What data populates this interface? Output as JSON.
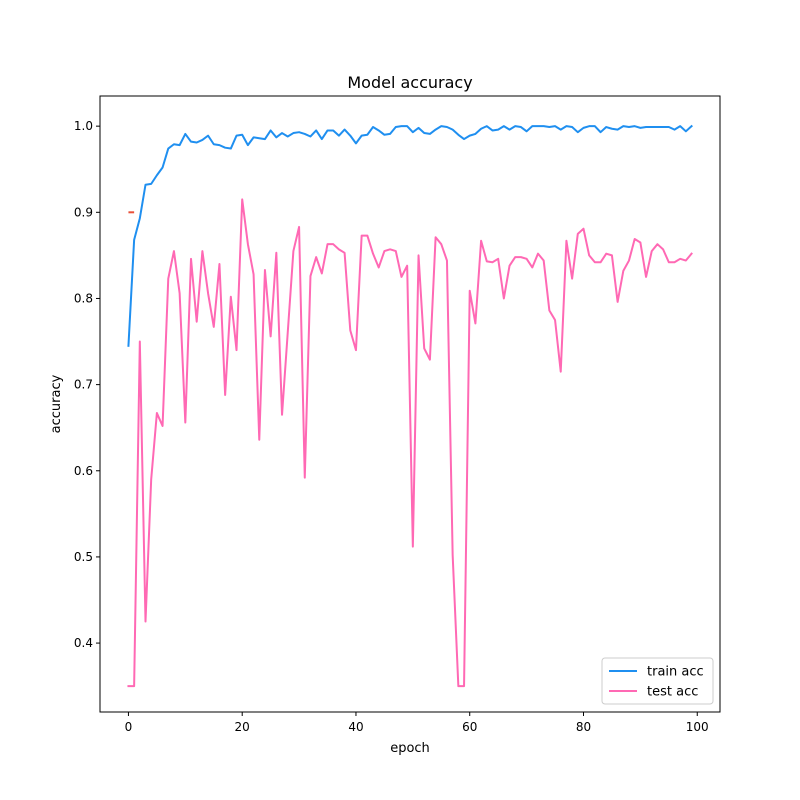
{
  "chart_data": {
    "type": "line",
    "title": "Model accuracy",
    "xlabel": "epoch",
    "ylabel": "accuracy",
    "xlim": [
      -5,
      104
    ],
    "ylim": [
      0.32,
      1.035
    ],
    "x_ticks": [
      0,
      20,
      40,
      60,
      80,
      100
    ],
    "y_ticks": [
      0.4,
      0.5,
      0.6,
      0.7,
      0.8,
      0.9,
      1.0
    ],
    "x_tick_labels": [
      "0",
      "20",
      "40",
      "60",
      "80",
      "100"
    ],
    "y_tick_labels": [
      "0.4",
      "0.5",
      "0.6",
      "0.7",
      "0.8",
      "0.9",
      "1.0"
    ],
    "grid": false,
    "legend_position": "bottom-right",
    "series": [
      {
        "name": "train acc",
        "color": "#1f8ff0",
        "x": [
          0,
          1,
          2,
          3,
          4,
          5,
          6,
          7,
          8,
          9,
          10,
          11,
          12,
          13,
          14,
          15,
          16,
          17,
          18,
          19,
          20,
          21,
          22,
          23,
          24,
          25,
          26,
          27,
          28,
          29,
          30,
          31,
          32,
          33,
          34,
          35,
          36,
          37,
          38,
          39,
          40,
          41,
          42,
          43,
          44,
          45,
          46,
          47,
          48,
          49,
          50,
          51,
          52,
          53,
          54,
          55,
          56,
          57,
          58,
          59,
          60,
          61,
          62,
          63,
          64,
          65,
          66,
          67,
          68,
          69,
          70,
          71,
          72,
          73,
          74,
          75,
          76,
          77,
          78,
          79,
          80,
          81,
          82,
          83,
          84,
          85,
          86,
          87,
          88,
          89,
          90,
          91,
          92,
          93,
          94,
          95,
          96,
          97,
          98,
          99
        ],
        "values": [
          0.745,
          0.868,
          0.893,
          0.932,
          0.933,
          0.943,
          0.952,
          0.974,
          0.979,
          0.978,
          0.991,
          0.982,
          0.981,
          0.984,
          0.989,
          0.979,
          0.978,
          0.975,
          0.974,
          0.989,
          0.99,
          0.978,
          0.987,
          0.986,
          0.985,
          0.995,
          0.987,
          0.992,
          0.988,
          0.992,
          0.993,
          0.991,
          0.988,
          0.995,
          0.985,
          0.995,
          0.995,
          0.989,
          0.996,
          0.989,
          0.98,
          0.989,
          0.99,
          0.999,
          0.995,
          0.99,
          0.991,
          0.999,
          1.0,
          1.0,
          0.993,
          0.998,
          0.992,
          0.991,
          0.996,
          1.0,
          0.999,
          0.996,
          0.99,
          0.985,
          0.989,
          0.991,
          0.997,
          1.0,
          0.995,
          0.996,
          1.0,
          0.996,
          1.0,
          0.999,
          0.994,
          1.0,
          1.0,
          1.0,
          0.999,
          1.0,
          0.996,
          1.0,
          0.999,
          0.993,
          0.998,
          1.0,
          1.0,
          0.993,
          0.999,
          0.997,
          0.996,
          1.0,
          0.999,
          1.0,
          0.998,
          0.999,
          0.999,
          0.999,
          0.999,
          0.999,
          0.996,
          1.0,
          0.994,
          1.0
        ]
      },
      {
        "name": "test acc",
        "color": "#ff69b4",
        "x": [
          0,
          1,
          2,
          3,
          4,
          5,
          6,
          7,
          8,
          9,
          10,
          11,
          12,
          13,
          14,
          15,
          16,
          17,
          18,
          19,
          20,
          21,
          22,
          23,
          24,
          25,
          26,
          27,
          28,
          29,
          30,
          31,
          32,
          33,
          34,
          35,
          36,
          37,
          38,
          39,
          40,
          41,
          42,
          43,
          44,
          45,
          46,
          47,
          48,
          49,
          50,
          51,
          52,
          53,
          54,
          55,
          56,
          57,
          58,
          59,
          60,
          61,
          62,
          63,
          64,
          65,
          66,
          67,
          68,
          69,
          70,
          71,
          72,
          73,
          74,
          75,
          76,
          77,
          78,
          79,
          80,
          81,
          82,
          83,
          84,
          85,
          86,
          87,
          88,
          89,
          90,
          91,
          92,
          93,
          94,
          95,
          96,
          97,
          98,
          99
        ],
        "values": [
          0.35,
          0.35,
          0.75,
          0.425,
          0.59,
          0.667,
          0.652,
          0.823,
          0.855,
          0.806,
          0.656,
          0.846,
          0.773,
          0.855,
          0.806,
          0.767,
          0.84,
          0.688,
          0.802,
          0.74,
          0.915,
          0.863,
          0.828,
          0.636,
          0.833,
          0.756,
          0.853,
          0.665,
          0.76,
          0.855,
          0.883,
          0.592,
          0.826,
          0.848,
          0.829,
          0.863,
          0.863,
          0.857,
          0.853,
          0.763,
          0.74,
          0.873,
          0.873,
          0.852,
          0.836,
          0.855,
          0.857,
          0.855,
          0.825,
          0.838,
          0.512,
          0.85,
          0.742,
          0.729,
          0.871,
          0.863,
          0.844,
          0.502,
          0.35,
          0.35,
          0.809,
          0.771,
          0.867,
          0.843,
          0.842,
          0.846,
          0.8,
          0.838,
          0.848,
          0.848,
          0.846,
          0.836,
          0.852,
          0.844,
          0.786,
          0.775,
          0.715,
          0.867,
          0.823,
          0.875,
          0.881,
          0.85,
          0.842,
          0.842,
          0.852,
          0.85,
          0.796,
          0.832,
          0.844,
          0.869,
          0.865,
          0.825,
          0.855,
          0.863,
          0.857,
          0.842,
          0.842,
          0.846,
          0.844,
          0.852
        ]
      }
    ],
    "annotations": [
      {
        "type": "segment",
        "color": "#e8503a",
        "x": [
          0,
          1
        ],
        "y": [
          0.9,
          0.9
        ]
      }
    ]
  }
}
